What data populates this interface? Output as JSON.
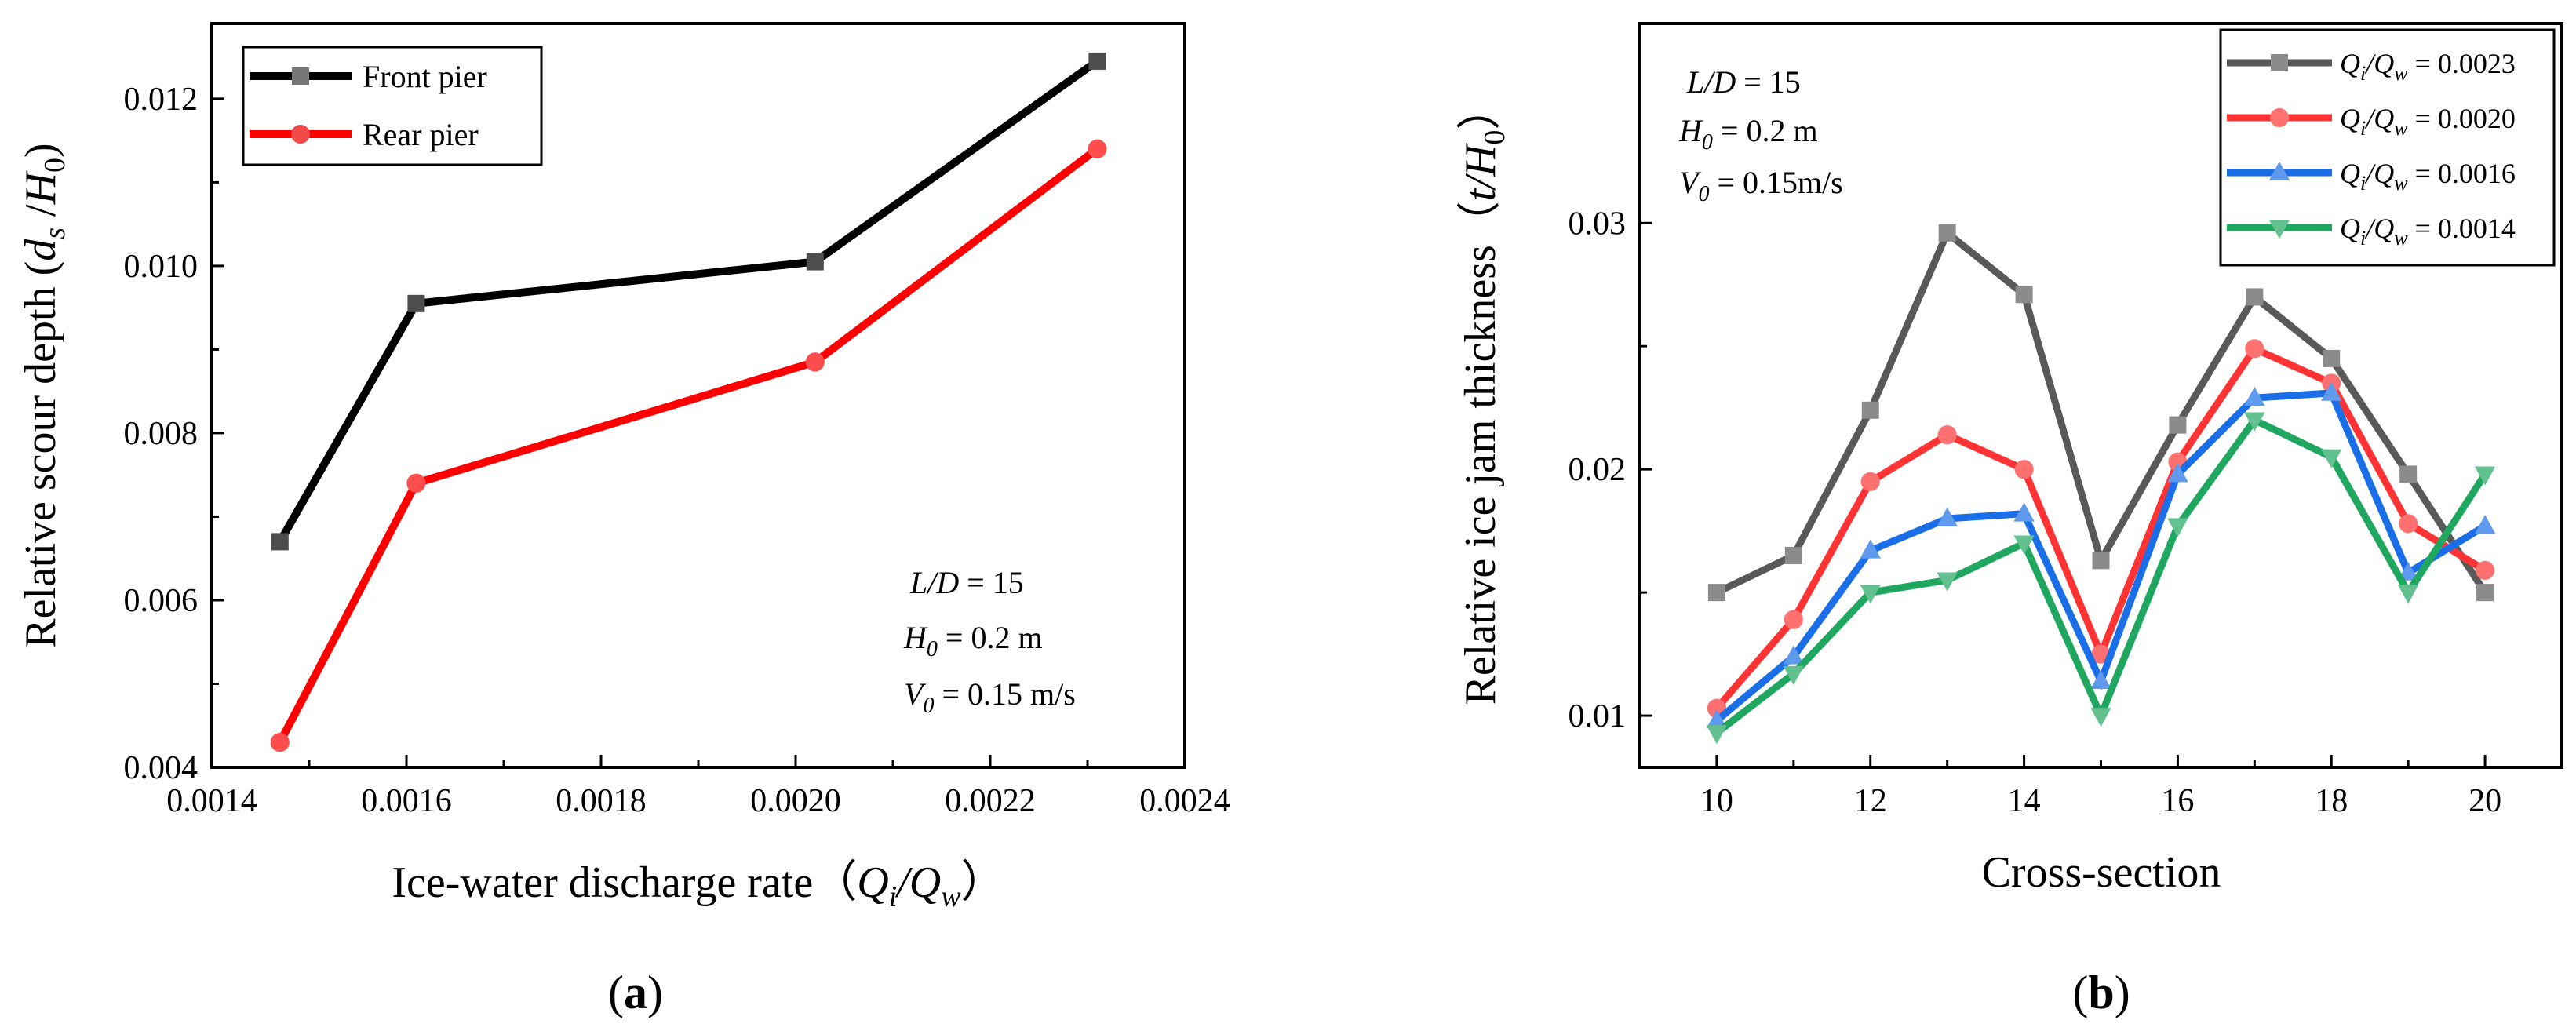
{
  "chart_data": [
    {
      "type": "line",
      "panel": "a",
      "caption": "(a)",
      "xlabel": "Ice-water discharge rate（Qi/Qw）",
      "ylabel": "Relative scour depth (ds /H0)",
      "xlim": [
        0.0014,
        0.0024
      ],
      "ylim": [
        0.004,
        0.0129
      ],
      "xticks": [
        "0.0014",
        "0.0016",
        "0.0018",
        "0.0020",
        "0.0022",
        "0.0024"
      ],
      "yticks": [
        "0.004",
        "0.006",
        "0.008",
        "0.010",
        "0.012"
      ],
      "x": [
        0.00147,
        0.00161,
        0.00202,
        0.00231
      ],
      "series": [
        {
          "name": "Front pier",
          "color": "#000000",
          "marker": "square",
          "values": [
            0.0067,
            0.00955,
            0.01005,
            0.01245
          ]
        },
        {
          "name": "Rear pier",
          "color": "#ff0000",
          "marker": "circle",
          "values": [
            0.0043,
            0.0074,
            0.00885,
            0.0114
          ]
        }
      ],
      "legend": "top-left",
      "annotations": [
        "L/D = 15",
        "H0 = 0.2 m",
        "V0 = 0.15 m/s"
      ]
    },
    {
      "type": "line",
      "panel": "b",
      "caption": "(b)",
      "xlabel": "Cross-section",
      "ylabel": "Relative ice jam thickness（t/H0）",
      "xlim": [
        9,
        21
      ],
      "ylim": [
        0.0079,
        0.0381
      ],
      "xticks": [
        "10",
        "12",
        "14",
        "16",
        "18",
        "20"
      ],
      "yticks": [
        "0.01",
        "0.02",
        "0.03"
      ],
      "x": [
        10,
        11,
        12,
        13,
        14,
        15,
        16,
        17,
        18,
        19,
        20
      ],
      "series": [
        {
          "name": "Qi/Qw = 0.0023",
          "ratio": "0.0023",
          "color": "#595959",
          "marker": "square",
          "values": [
            0.015,
            0.0165,
            0.0224,
            0.0296,
            0.0271,
            0.0163,
            0.0218,
            0.027,
            0.0245,
            0.0198,
            0.015
          ]
        },
        {
          "name": "Qi/Qw = 0.0020",
          "ratio": "0.0020",
          "color": "#ff3333",
          "marker": "circle",
          "values": [
            0.0103,
            0.0139,
            0.0195,
            0.0214,
            0.02,
            0.0125,
            0.0203,
            0.0249,
            0.0235,
            0.0178,
            0.0159
          ]
        },
        {
          "name": "Qi/Qw = 0.0016",
          "ratio": "0.0016",
          "color": "#1a6fe8",
          "marker": "triangle-up",
          "values": [
            0.0098,
            0.0124,
            0.0167,
            0.018,
            0.0182,
            0.0114,
            0.0198,
            0.0229,
            0.0231,
            0.0158,
            0.0177
          ]
        },
        {
          "name": "Qi/Qw = 0.0014",
          "ratio": "0.0014",
          "color": "#1fa65f",
          "marker": "triangle-down",
          "values": [
            0.0093,
            0.0117,
            0.015,
            0.0155,
            0.017,
            0.01,
            0.0177,
            0.022,
            0.0205,
            0.015,
            0.0198
          ]
        }
      ],
      "legend": "top-right",
      "annotations": [
        "L/D = 15",
        "H0 = 0.2 m",
        "V0 = 0.15m/s"
      ]
    }
  ],
  "text": {
    "a_xlabel_main": "Ice-water discharge rate（",
    "a_xlabel_Q1": "Q",
    "a_xlabel_i": "i",
    "a_xlabel_slash": "/",
    "a_xlabel_Q2": "Q",
    "a_xlabel_w": "w",
    "a_xlabel_end": "）",
    "a_ylabel_main": "Relative scour depth (",
    "a_ylabel_d": "d",
    "a_ylabel_s": "s",
    "a_ylabel_slash": " /",
    "a_ylabel_H": "H",
    "a_ylabel_0": "0",
    "a_ylabel_end": ")",
    "a_ann1_LD": "L/D",
    "a_ann1_val": " = 15",
    "a_ann2_H": "H",
    "a_ann2_0": "0",
    "a_ann2_val": " = 0.2 m",
    "a_ann3_V": "V",
    "a_ann3_0": "0",
    "a_ann3_val": " = 0.15 m/s",
    "b_xlabel": "Cross-section",
    "b_ylabel_main": "Relative ice jam thickness（",
    "b_ylabel_t": "t",
    "b_ylabel_slash": "/",
    "b_ylabel_H": "H",
    "b_ylabel_0": "0",
    "b_ylabel_end": "）",
    "b_ann1_LD": "L/D",
    "b_ann1_val": " = 15",
    "b_ann2_H": "H",
    "b_ann2_0": "0",
    "b_ann2_val": " = 0.2 m",
    "b_ann3_V": "V",
    "b_ann3_0": "0",
    "b_ann3_val": " = 0.15m/s",
    "leg_Q": "Q",
    "leg_i": "i",
    "leg_slash": "/",
    "leg_w": "w",
    "leg_eq": " = ",
    "cap_a_open": "(",
    "cap_a": "a",
    "cap_a_close": ")",
    "cap_b_open": "(",
    "cap_b": "b",
    "cap_b_close": ")"
  }
}
